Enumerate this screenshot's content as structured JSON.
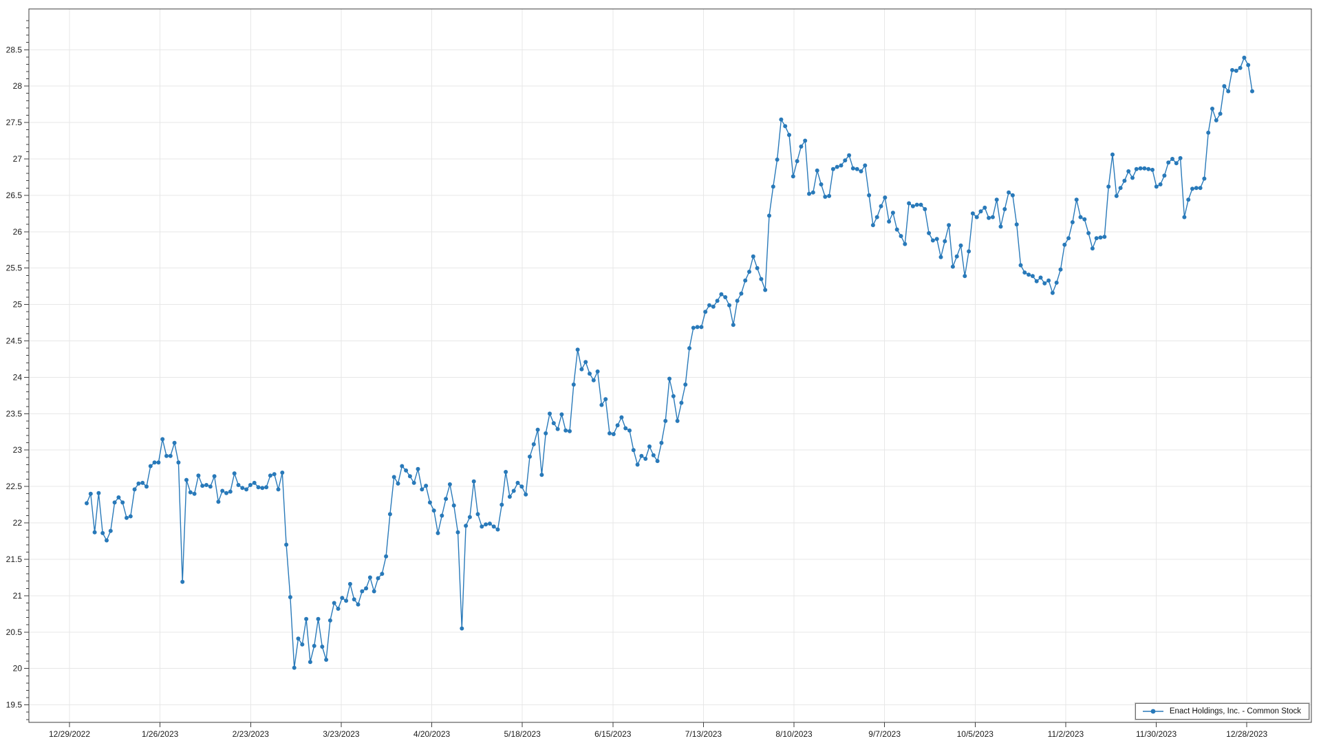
{
  "window": {
    "background": "#ffffff"
  },
  "legend": {
    "label": "Enact Holdings, Inc. - Common Stock"
  },
  "chart_data": {
    "type": "line",
    "title": "",
    "xlabel": "",
    "ylabel": "",
    "x_unit": "daily closing prices, Jan 2023 - Dec 2023 (values approximate, read from chart)",
    "x_tick_labels": [
      "12/29/2022",
      "1/26/2023",
      "2/23/2023",
      "3/23/2023",
      "4/20/2023",
      "5/18/2023",
      "6/15/2023",
      "7/13/2023",
      "8/10/2023",
      "9/7/2023",
      "10/5/2023",
      "11/2/2023",
      "11/30/2023",
      "12/28/2023"
    ],
    "y_tick_values": [
      19.5,
      20,
      20.5,
      21,
      21.5,
      22,
      22.5,
      23,
      23.5,
      24,
      24.5,
      25,
      25.5,
      26,
      26.5,
      27,
      27.5,
      28,
      28.5
    ],
    "y_tick_labels": [
      "19.5",
      "20",
      "20.5",
      "21",
      "21.5",
      "22",
      "22.5",
      "23",
      "23.5",
      "24",
      "24.5",
      "25",
      "25.5",
      "26",
      "26.5",
      "27",
      "27.5",
      "28",
      "28.5"
    ],
    "ylim": [
      19.26,
      29.06
    ],
    "grid": true,
    "legend_position": "bottom-right",
    "line_color": "#2879b9",
    "marker": "circle",
    "axis_color": "#3c3c3c",
    "grid_color": "#e7e7e7",
    "text_color": "#1a1a1a",
    "series": [
      {
        "name": "Enact Holdings, Inc. - Common Stock",
        "values": [
          22.27,
          22.4,
          21.87,
          22.41,
          21.86,
          21.76,
          21.89,
          22.28,
          22.35,
          22.28,
          22.07,
          22.09,
          22.46,
          22.54,
          22.55,
          22.5,
          22.78,
          22.83,
          22.83,
          23.15,
          22.92,
          22.92,
          23.1,
          22.83,
          21.19,
          22.59,
          22.42,
          22.4,
          22.65,
          22.51,
          22.52,
          22.5,
          22.64,
          22.29,
          22.44,
          22.41,
          22.43,
          22.68,
          22.52,
          22.48,
          22.46,
          22.52,
          22.55,
          22.49,
          22.48,
          22.49,
          22.65,
          22.67,
          22.46,
          22.69,
          21.7,
          20.98,
          20.01,
          20.41,
          20.33,
          20.68,
          20.09,
          20.31,
          20.68,
          20.3,
          20.12,
          20.66,
          20.9,
          20.82,
          20.97,
          20.93,
          21.16,
          20.95,
          20.88,
          21.06,
          21.1,
          21.25,
          21.06,
          21.24,
          21.3,
          21.54,
          22.12,
          22.63,
          22.54,
          22.78,
          22.72,
          22.64,
          22.55,
          22.74,
          22.46,
          22.51,
          22.28,
          22.17,
          21.86,
          22.1,
          22.33,
          22.53,
          22.24,
          21.87,
          20.55,
          21.96,
          22.08,
          22.57,
          22.12,
          21.95,
          21.98,
          21.99,
          21.95,
          21.91,
          22.25,
          22.7,
          22.36,
          22.44,
          22.55,
          22.5,
          22.39,
          22.91,
          23.08,
          23.28,
          22.66,
          23.23,
          23.5,
          23.37,
          23.29,
          23.49,
          23.27,
          23.26,
          23.9,
          24.38,
          24.11,
          24.21,
          24.05,
          23.96,
          24.08,
          23.62,
          23.7,
          23.23,
          23.22,
          23.34,
          23.45,
          23.3,
          23.27,
          23.0,
          22.8,
          22.92,
          22.88,
          23.05,
          22.93,
          22.85,
          23.1,
          23.4,
          23.98,
          23.74,
          23.4,
          23.65,
          23.9,
          24.4,
          24.68,
          24.69,
          24.69,
          24.9,
          24.99,
          24.97,
          25.05,
          25.14,
          25.1,
          24.99,
          24.72,
          25.05,
          25.15,
          25.33,
          25.45,
          25.66,
          25.5,
          25.35,
          25.2,
          26.22,
          26.62,
          26.99,
          27.54,
          27.45,
          27.33,
          26.76,
          26.97,
          27.17,
          27.25,
          26.52,
          26.54,
          26.84,
          26.65,
          26.48,
          26.49,
          26.86,
          26.89,
          26.91,
          26.98,
          27.05,
          26.87,
          26.86,
          26.83,
          26.91,
          26.5,
          26.09,
          26.2,
          26.35,
          26.47,
          26.14,
          26.26,
          26.03,
          25.94,
          25.83,
          26.39,
          26.35,
          26.37,
          26.37,
          26.31,
          25.98,
          25.88,
          25.9,
          25.65,
          25.87,
          26.09,
          25.52,
          25.66,
          25.81,
          25.39,
          25.73,
          26.25,
          26.2,
          26.28,
          26.33,
          26.19,
          26.2,
          26.44,
          26.07,
          26.31,
          26.54,
          26.5,
          26.1,
          25.54,
          25.44,
          25.41,
          25.39,
          25.32,
          25.37,
          25.29,
          25.33,
          25.16,
          25.3,
          25.48,
          25.82,
          25.91,
          26.13,
          26.44,
          26.2,
          26.17,
          25.98,
          25.77,
          25.91,
          25.92,
          25.93,
          26.62,
          27.06,
          26.49,
          26.6,
          26.7,
          26.83,
          26.74,
          26.86,
          26.87,
          26.87,
          26.86,
          26.85,
          26.62,
          26.65,
          26.77,
          26.95,
          27.0,
          26.94,
          27.01,
          26.2,
          26.44,
          26.59,
          26.6,
          26.6,
          26.73,
          27.36,
          27.69,
          27.53,
          27.62,
          28.0,
          27.93,
          28.22,
          28.21,
          28.25,
          28.39,
          28.29,
          27.93
        ]
      }
    ]
  }
}
